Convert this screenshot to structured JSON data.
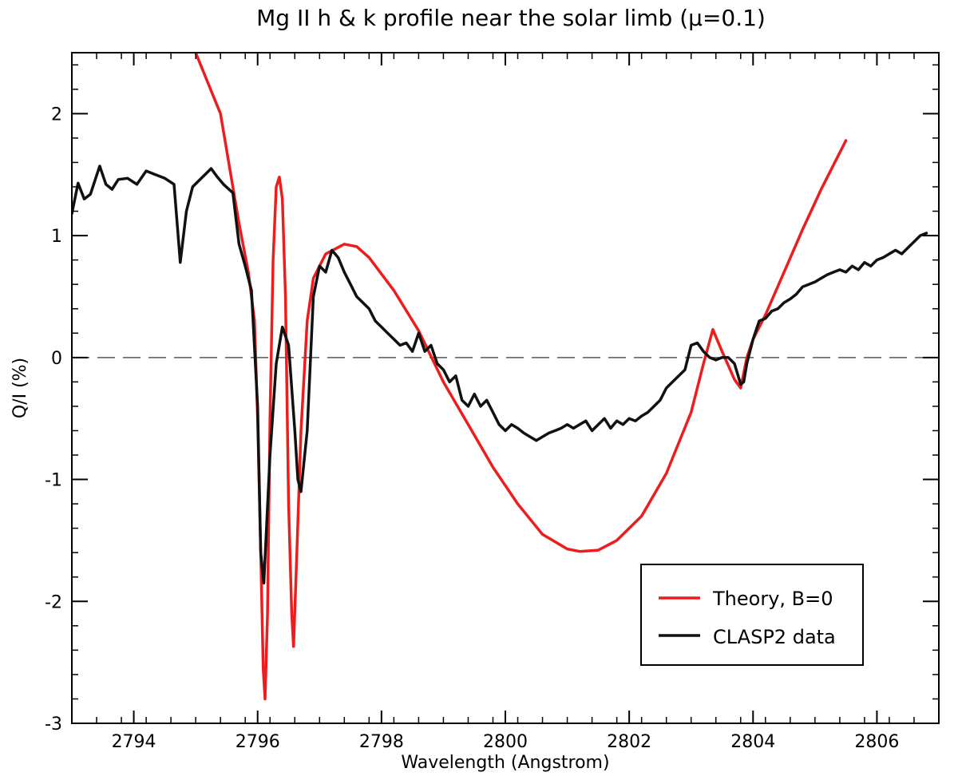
{
  "chart_data": {
    "type": "line",
    "title": "Mg II h & k profile near the solar limb (μ=0.1)",
    "xlabel": "Wavelength (Angstrom)",
    "ylabel": "Q/I (%)",
    "xlim": [
      2793.0,
      2807.0
    ],
    "ylim": [
      -3.0,
      2.5
    ],
    "x_ticks": [
      2794,
      2796,
      2798,
      2800,
      2802,
      2804,
      2806
    ],
    "x_tick_labels": [
      "2794",
      "2796",
      "2798",
      "2800",
      "2802",
      "2804",
      "2806"
    ],
    "y_ticks": [
      2,
      1,
      0,
      -1,
      -2,
      -3
    ],
    "y_tick_labels": [
      "2",
      "1",
      "0",
      "-1",
      "-2",
      "-3"
    ],
    "grid": false,
    "zero_line": {
      "y": 0,
      "style": "dashed",
      "color": "#555555"
    },
    "legend": {
      "placement": "bottom-right"
    },
    "series": [
      {
        "name": "Theory, B=0",
        "color": "#ee1c1c",
        "x": [
          2795.0,
          2795.4,
          2795.7,
          2795.85,
          2795.95,
          2796.0,
          2796.05,
          2796.09,
          2796.12,
          2796.16,
          2796.2,
          2796.25,
          2796.3,
          2796.35,
          2796.4,
          2796.45,
          2796.5,
          2796.55,
          2796.58,
          2796.62,
          2796.7,
          2796.8,
          2796.9,
          2797.1,
          2797.4,
          2797.6,
          2797.8,
          2798.2,
          2798.6,
          2799.0,
          2799.4,
          2799.8,
          2800.2,
          2800.6,
          2801.0,
          2801.2,
          2801.5,
          2801.8,
          2802.2,
          2802.6,
          2803.0,
          2803.2,
          2803.35,
          2803.5,
          2803.7,
          2803.8,
          2803.9,
          2804.0,
          2804.2,
          2804.5,
          2804.8,
          2805.1,
          2805.5
        ],
        "values": [
          2.5,
          2.0,
          1.1,
          0.7,
          0.3,
          -0.5,
          -1.6,
          -2.55,
          -2.8,
          -2.1,
          -0.5,
          0.8,
          1.4,
          1.48,
          1.3,
          0.5,
          -1.2,
          -2.1,
          -2.37,
          -1.8,
          -0.6,
          0.3,
          0.65,
          0.85,
          0.93,
          0.91,
          0.82,
          0.55,
          0.22,
          -0.2,
          -0.55,
          -0.9,
          -1.2,
          -1.45,
          -1.57,
          -1.59,
          -1.58,
          -1.5,
          -1.3,
          -0.95,
          -0.45,
          -0.05,
          0.23,
          0.05,
          -0.18,
          -0.25,
          0.0,
          0.15,
          0.35,
          0.7,
          1.05,
          1.38,
          1.78
        ]
      },
      {
        "name": "CLASP2 data",
        "color": "#111111",
        "x": [
          2793.0,
          2793.1,
          2793.2,
          2793.3,
          2793.45,
          2793.55,
          2793.65,
          2793.75,
          2793.9,
          2794.05,
          2794.2,
          2794.35,
          2794.5,
          2794.65,
          2794.75,
          2794.85,
          2794.95,
          2795.05,
          2795.15,
          2795.25,
          2795.35,
          2795.45,
          2795.6,
          2795.7,
          2795.8,
          2795.9,
          2796.0,
          2796.05,
          2796.1,
          2796.2,
          2796.3,
          2796.4,
          2796.5,
          2796.6,
          2796.65,
          2796.7,
          2796.8,
          2796.9,
          2797.0,
          2797.1,
          2797.2,
          2797.3,
          2797.4,
          2797.5,
          2797.6,
          2797.7,
          2797.8,
          2797.9,
          2798.0,
          2798.1,
          2798.2,
          2798.3,
          2798.4,
          2798.5,
          2798.6,
          2798.7,
          2798.8,
          2798.9,
          2799.0,
          2799.1,
          2799.2,
          2799.3,
          2799.4,
          2799.5,
          2799.6,
          2799.7,
          2799.8,
          2799.9,
          2800.0,
          2800.1,
          2800.2,
          2800.3,
          2800.4,
          2800.5,
          2800.6,
          2800.7,
          2800.8,
          2800.9,
          2801.0,
          2801.1,
          2801.2,
          2801.3,
          2801.4,
          2801.5,
          2801.6,
          2801.7,
          2801.8,
          2801.9,
          2802.0,
          2802.1,
          2802.2,
          2802.3,
          2802.4,
          2802.5,
          2802.6,
          2802.7,
          2802.8,
          2802.9,
          2803.0,
          2803.1,
          2803.2,
          2803.3,
          2803.4,
          2803.5,
          2803.6,
          2803.7,
          2803.8,
          2803.85,
          2803.9,
          2804.0,
          2804.1,
          2804.2,
          2804.3,
          2804.4,
          2804.5,
          2804.6,
          2804.7,
          2804.8,
          2804.9,
          2805.0,
          2805.1,
          2805.2,
          2805.3,
          2805.4,
          2805.5,
          2805.6,
          2805.7,
          2805.8,
          2805.9,
          2806.0,
          2806.1,
          2806.2,
          2806.3,
          2806.4,
          2806.5,
          2806.6,
          2806.7,
          2806.8
        ],
        "values": [
          1.18,
          1.43,
          1.3,
          1.34,
          1.57,
          1.42,
          1.38,
          1.46,
          1.47,
          1.42,
          1.53,
          1.5,
          1.47,
          1.42,
          0.78,
          1.2,
          1.4,
          1.45,
          1.5,
          1.55,
          1.48,
          1.42,
          1.35,
          0.93,
          0.75,
          0.55,
          -0.4,
          -1.6,
          -1.85,
          -0.8,
          -0.05,
          0.25,
          0.1,
          -0.6,
          -1.0,
          -1.1,
          -0.6,
          0.5,
          0.75,
          0.7,
          0.88,
          0.82,
          0.7,
          0.6,
          0.5,
          0.45,
          0.4,
          0.3,
          0.25,
          0.2,
          0.15,
          0.1,
          0.12,
          0.05,
          0.2,
          0.05,
          0.1,
          -0.05,
          -0.1,
          -0.2,
          -0.15,
          -0.35,
          -0.4,
          -0.3,
          -0.4,
          -0.35,
          -0.45,
          -0.55,
          -0.6,
          -0.55,
          -0.58,
          -0.62,
          -0.65,
          -0.68,
          -0.65,
          -0.62,
          -0.6,
          -0.58,
          -0.55,
          -0.58,
          -0.55,
          -0.52,
          -0.6,
          -0.55,
          -0.5,
          -0.58,
          -0.52,
          -0.55,
          -0.5,
          -0.52,
          -0.48,
          -0.45,
          -0.4,
          -0.35,
          -0.25,
          -0.2,
          -0.15,
          -0.1,
          0.1,
          0.12,
          0.05,
          0.0,
          -0.02,
          0.0,
          0.0,
          -0.05,
          -0.22,
          -0.2,
          -0.05,
          0.15,
          0.3,
          0.32,
          0.38,
          0.4,
          0.45,
          0.48,
          0.52,
          0.58,
          0.6,
          0.62,
          0.65,
          0.68,
          0.7,
          0.72,
          0.7,
          0.75,
          0.72,
          0.78,
          0.75,
          0.8,
          0.82,
          0.85,
          0.88,
          0.85,
          0.9,
          0.95,
          1.0,
          1.02
        ]
      }
    ]
  }
}
